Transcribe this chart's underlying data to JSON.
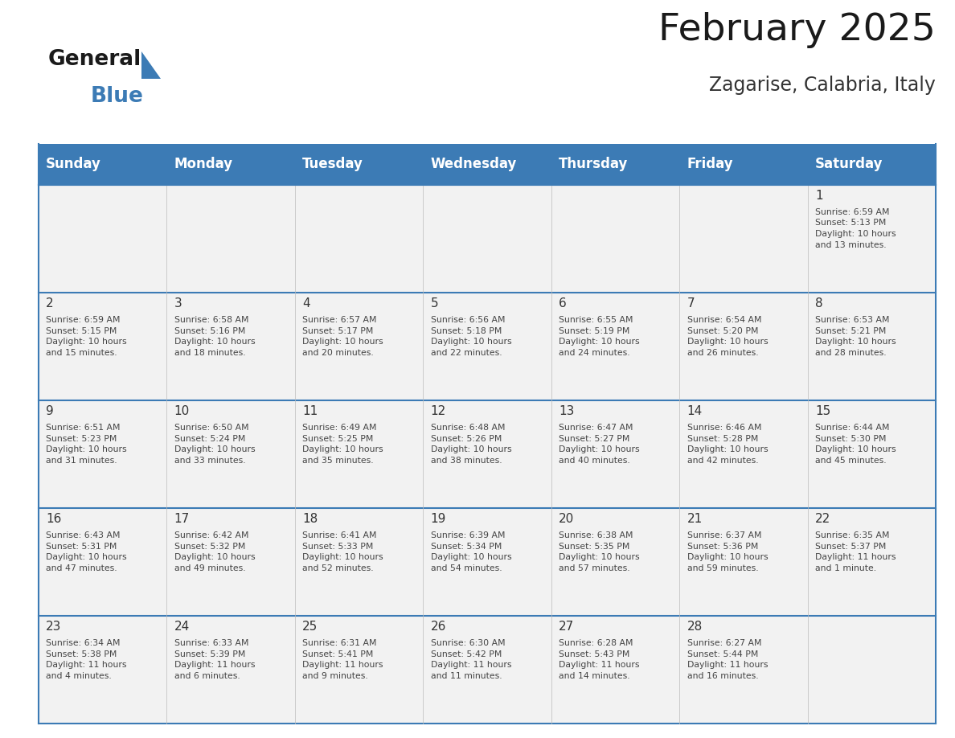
{
  "title": "February 2025",
  "subtitle": "Zagarise, Calabria, Italy",
  "days_of_week": [
    "Sunday",
    "Monday",
    "Tuesday",
    "Wednesday",
    "Thursday",
    "Friday",
    "Saturday"
  ],
  "header_bg": "#3C7BB5",
  "header_text": "#FFFFFF",
  "cell_bg_light": "#F2F2F2",
  "line_color": "#3C7BB5",
  "text_color": "#333333",
  "calendar_data": [
    [
      null,
      null,
      null,
      null,
      null,
      null,
      {
        "day": 1,
        "sunrise": "6:59 AM",
        "sunset": "5:13 PM",
        "daylight": "10 hours\nand 13 minutes."
      }
    ],
    [
      {
        "day": 2,
        "sunrise": "6:59 AM",
        "sunset": "5:15 PM",
        "daylight": "10 hours\nand 15 minutes."
      },
      {
        "day": 3,
        "sunrise": "6:58 AM",
        "sunset": "5:16 PM",
        "daylight": "10 hours\nand 18 minutes."
      },
      {
        "day": 4,
        "sunrise": "6:57 AM",
        "sunset": "5:17 PM",
        "daylight": "10 hours\nand 20 minutes."
      },
      {
        "day": 5,
        "sunrise": "6:56 AM",
        "sunset": "5:18 PM",
        "daylight": "10 hours\nand 22 minutes."
      },
      {
        "day": 6,
        "sunrise": "6:55 AM",
        "sunset": "5:19 PM",
        "daylight": "10 hours\nand 24 minutes."
      },
      {
        "day": 7,
        "sunrise": "6:54 AM",
        "sunset": "5:20 PM",
        "daylight": "10 hours\nand 26 minutes."
      },
      {
        "day": 8,
        "sunrise": "6:53 AM",
        "sunset": "5:21 PM",
        "daylight": "10 hours\nand 28 minutes."
      }
    ],
    [
      {
        "day": 9,
        "sunrise": "6:51 AM",
        "sunset": "5:23 PM",
        "daylight": "10 hours\nand 31 minutes."
      },
      {
        "day": 10,
        "sunrise": "6:50 AM",
        "sunset": "5:24 PM",
        "daylight": "10 hours\nand 33 minutes."
      },
      {
        "day": 11,
        "sunrise": "6:49 AM",
        "sunset": "5:25 PM",
        "daylight": "10 hours\nand 35 minutes."
      },
      {
        "day": 12,
        "sunrise": "6:48 AM",
        "sunset": "5:26 PM",
        "daylight": "10 hours\nand 38 minutes."
      },
      {
        "day": 13,
        "sunrise": "6:47 AM",
        "sunset": "5:27 PM",
        "daylight": "10 hours\nand 40 minutes."
      },
      {
        "day": 14,
        "sunrise": "6:46 AM",
        "sunset": "5:28 PM",
        "daylight": "10 hours\nand 42 minutes."
      },
      {
        "day": 15,
        "sunrise": "6:44 AM",
        "sunset": "5:30 PM",
        "daylight": "10 hours\nand 45 minutes."
      }
    ],
    [
      {
        "day": 16,
        "sunrise": "6:43 AM",
        "sunset": "5:31 PM",
        "daylight": "10 hours\nand 47 minutes."
      },
      {
        "day": 17,
        "sunrise": "6:42 AM",
        "sunset": "5:32 PM",
        "daylight": "10 hours\nand 49 minutes."
      },
      {
        "day": 18,
        "sunrise": "6:41 AM",
        "sunset": "5:33 PM",
        "daylight": "10 hours\nand 52 minutes."
      },
      {
        "day": 19,
        "sunrise": "6:39 AM",
        "sunset": "5:34 PM",
        "daylight": "10 hours\nand 54 minutes."
      },
      {
        "day": 20,
        "sunrise": "6:38 AM",
        "sunset": "5:35 PM",
        "daylight": "10 hours\nand 57 minutes."
      },
      {
        "day": 21,
        "sunrise": "6:37 AM",
        "sunset": "5:36 PM",
        "daylight": "10 hours\nand 59 minutes."
      },
      {
        "day": 22,
        "sunrise": "6:35 AM",
        "sunset": "5:37 PM",
        "daylight": "11 hours\nand 1 minute."
      }
    ],
    [
      {
        "day": 23,
        "sunrise": "6:34 AM",
        "sunset": "5:38 PM",
        "daylight": "11 hours\nand 4 minutes."
      },
      {
        "day": 24,
        "sunrise": "6:33 AM",
        "sunset": "5:39 PM",
        "daylight": "11 hours\nand 6 minutes."
      },
      {
        "day": 25,
        "sunrise": "6:31 AM",
        "sunset": "5:41 PM",
        "daylight": "11 hours\nand 9 minutes."
      },
      {
        "day": 26,
        "sunrise": "6:30 AM",
        "sunset": "5:42 PM",
        "daylight": "11 hours\nand 11 minutes."
      },
      {
        "day": 27,
        "sunrise": "6:28 AM",
        "sunset": "5:43 PM",
        "daylight": "11 hours\nand 14 minutes."
      },
      {
        "day": 28,
        "sunrise": "6:27 AM",
        "sunset": "5:44 PM",
        "daylight": "11 hours\nand 16 minutes."
      },
      null
    ]
  ],
  "fig_width": 11.88,
  "fig_height": 9.18
}
